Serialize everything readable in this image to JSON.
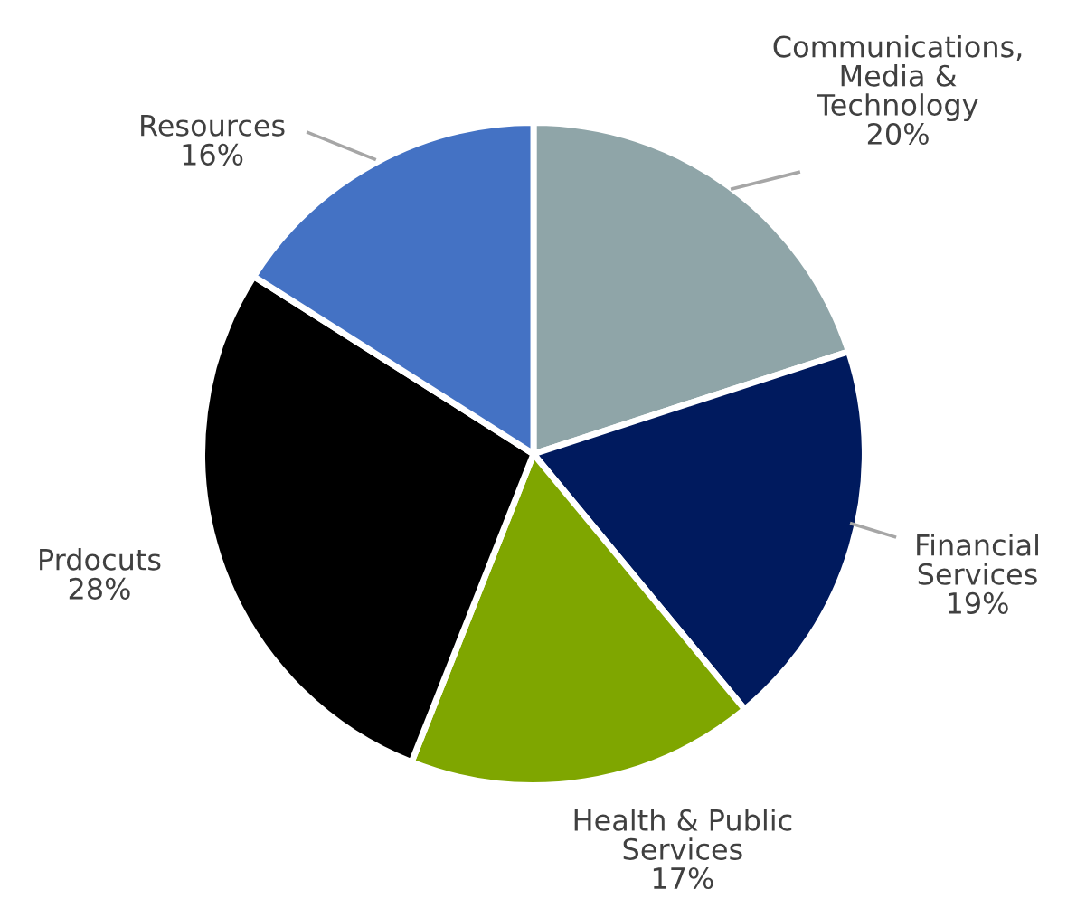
{
  "chart_data": {
    "type": "pie",
    "categories": [
      "Communications,\nMedia &\nTechnology",
      "Financial\nServices",
      "Health & Public\nServices",
      "Prdocuts",
      "Resources"
    ],
    "values": [
      20,
      19,
      17,
      28,
      16
    ],
    "value_labels": [
      "20%",
      "19%",
      "17%",
      "28%",
      "16%"
    ],
    "colors": [
      "#8fa5a8",
      "#001a5e",
      "#7fa600",
      "#000000",
      "#4472c4"
    ]
  }
}
